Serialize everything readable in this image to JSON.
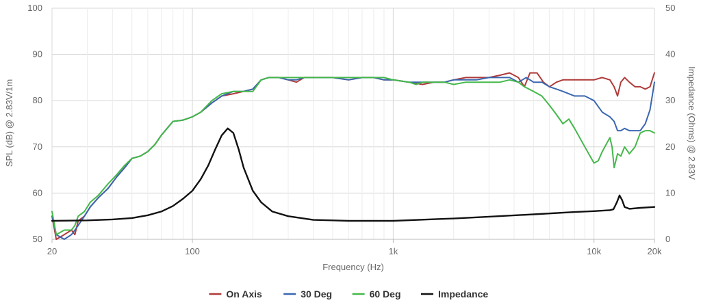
{
  "chart_data": {
    "type": "line",
    "title": "",
    "xlabel": "Frequency (Hz)",
    "ylabel": "SPL (dB) @ 2.83V/1m",
    "y2label": "Impedance (Ohms) @ 2.83V",
    "x_scale": "log",
    "xlim": [
      20,
      20000
    ],
    "ylim": [
      50,
      100
    ],
    "y2lim": [
      0,
      50
    ],
    "grid": true,
    "legend_position": "bottom-center",
    "x_ticks": [
      {
        "value": 20,
        "label": "20"
      },
      {
        "value": 100,
        "label": "100"
      },
      {
        "value": 1000,
        "label": "1k"
      },
      {
        "value": 10000,
        "label": "10k"
      },
      {
        "value": 20000,
        "label": "20k"
      }
    ],
    "y_ticks": [
      50,
      60,
      70,
      80,
      90,
      100
    ],
    "y2_ticks": [
      0,
      10,
      20,
      30,
      40,
      50
    ],
    "series": [
      {
        "name": "On Axis",
        "axis": "left",
        "color": "#b03a3a",
        "points": [
          [
            20,
            55
          ],
          [
            21,
            50
          ],
          [
            23,
            51
          ],
          [
            25,
            52
          ],
          [
            26,
            51
          ],
          [
            27,
            54
          ],
          [
            29,
            55
          ],
          [
            31,
            57
          ],
          [
            34,
            59
          ],
          [
            38,
            61
          ],
          [
            42,
            63.5
          ],
          [
            46,
            65.5
          ],
          [
            50,
            67.5
          ],
          [
            55,
            68
          ],
          [
            60,
            69
          ],
          [
            65,
            70.5
          ],
          [
            70,
            72.5
          ],
          [
            80,
            75.5
          ],
          [
            90,
            75.8
          ],
          [
            100,
            76.5
          ],
          [
            110,
            77.5
          ],
          [
            125,
            79.5
          ],
          [
            140,
            81
          ],
          [
            160,
            81.5
          ],
          [
            180,
            82
          ],
          [
            200,
            82.5
          ],
          [
            220,
            84.5
          ],
          [
            240,
            85
          ],
          [
            270,
            85
          ],
          [
            300,
            84.5
          ],
          [
            330,
            84
          ],
          [
            360,
            85
          ],
          [
            400,
            85
          ],
          [
            450,
            85
          ],
          [
            500,
            85
          ],
          [
            600,
            84.5
          ],
          [
            700,
            85
          ],
          [
            800,
            85
          ],
          [
            900,
            84.5
          ],
          [
            1000,
            84.5
          ],
          [
            1200,
            84
          ],
          [
            1400,
            83.5
          ],
          [
            1600,
            84
          ],
          [
            1800,
            84
          ],
          [
            2000,
            84.5
          ],
          [
            2300,
            85
          ],
          [
            2600,
            85
          ],
          [
            3000,
            85
          ],
          [
            3400,
            85.5
          ],
          [
            3800,
            86
          ],
          [
            4200,
            85
          ],
          [
            4500,
            83
          ],
          [
            4800,
            86
          ],
          [
            5200,
            86
          ],
          [
            5600,
            84
          ],
          [
            6000,
            83
          ],
          [
            6500,
            84
          ],
          [
            7000,
            84.5
          ],
          [
            8000,
            84.5
          ],
          [
            9000,
            84.5
          ],
          [
            10000,
            84.5
          ],
          [
            11000,
            85
          ],
          [
            12000,
            84.5
          ],
          [
            12600,
            83
          ],
          [
            13100,
            81
          ],
          [
            13600,
            84
          ],
          [
            14200,
            85
          ],
          [
            15000,
            84
          ],
          [
            16000,
            83
          ],
          [
            17000,
            83
          ],
          [
            18000,
            82.5
          ],
          [
            19000,
            83
          ],
          [
            20000,
            86
          ]
        ]
      },
      {
        "name": "30 Deg",
        "axis": "left",
        "color": "#3a67b0",
        "points": [
          [
            20,
            55
          ],
          [
            21,
            51
          ],
          [
            23,
            50
          ],
          [
            25,
            51
          ],
          [
            26,
            52
          ],
          [
            27,
            53
          ],
          [
            29,
            55
          ],
          [
            31,
            57
          ],
          [
            34,
            59
          ],
          [
            38,
            61
          ],
          [
            42,
            63.5
          ],
          [
            46,
            65.5
          ],
          [
            50,
            67.5
          ],
          [
            55,
            68
          ],
          [
            60,
            69
          ],
          [
            65,
            70.5
          ],
          [
            70,
            72.5
          ],
          [
            80,
            75.5
          ],
          [
            90,
            75.8
          ],
          [
            100,
            76.5
          ],
          [
            110,
            77.5
          ],
          [
            125,
            79.5
          ],
          [
            140,
            81
          ],
          [
            160,
            82
          ],
          [
            180,
            82
          ],
          [
            200,
            82.5
          ],
          [
            220,
            84.5
          ],
          [
            240,
            85
          ],
          [
            270,
            85
          ],
          [
            300,
            84.5
          ],
          [
            330,
            84.5
          ],
          [
            360,
            85
          ],
          [
            400,
            85
          ],
          [
            450,
            85
          ],
          [
            500,
            85
          ],
          [
            600,
            84.5
          ],
          [
            700,
            85
          ],
          [
            800,
            85
          ],
          [
            900,
            84.5
          ],
          [
            1000,
            84.5
          ],
          [
            1200,
            84
          ],
          [
            1400,
            84
          ],
          [
            1600,
            84
          ],
          [
            1800,
            84
          ],
          [
            2000,
            84.5
          ],
          [
            2300,
            84.5
          ],
          [
            2600,
            84.5
          ],
          [
            3000,
            85
          ],
          [
            3400,
            85
          ],
          [
            3800,
            85
          ],
          [
            4200,
            84
          ],
          [
            4600,
            85
          ],
          [
            5000,
            84
          ],
          [
            5500,
            84
          ],
          [
            6000,
            83
          ],
          [
            6500,
            82.5
          ],
          [
            7000,
            82
          ],
          [
            8000,
            81
          ],
          [
            9000,
            81
          ],
          [
            10000,
            80
          ],
          [
            11000,
            77.5
          ],
          [
            12000,
            76.5
          ],
          [
            12600,
            75.5
          ],
          [
            13100,
            73.5
          ],
          [
            13600,
            73.5
          ],
          [
            14200,
            74
          ],
          [
            15000,
            73.5
          ],
          [
            16000,
            73.5
          ],
          [
            17000,
            73.5
          ],
          [
            18000,
            75
          ],
          [
            19000,
            78
          ],
          [
            20000,
            84
          ]
        ]
      },
      {
        "name": "60 Deg",
        "axis": "left",
        "color": "#44b84a",
        "points": [
          [
            20,
            56
          ],
          [
            21,
            51
          ],
          [
            23,
            52
          ],
          [
            25,
            52
          ],
          [
            26,
            53
          ],
          [
            27,
            55
          ],
          [
            29,
            56
          ],
          [
            31,
            58
          ],
          [
            34,
            59.5
          ],
          [
            38,
            62
          ],
          [
            42,
            64
          ],
          [
            46,
            66
          ],
          [
            50,
            67.5
          ],
          [
            55,
            68
          ],
          [
            60,
            69
          ],
          [
            65,
            70.5
          ],
          [
            70,
            72.5
          ],
          [
            80,
            75.5
          ],
          [
            90,
            75.8
          ],
          [
            100,
            76.5
          ],
          [
            110,
            77.5
          ],
          [
            125,
            80
          ],
          [
            140,
            81.5
          ],
          [
            160,
            82
          ],
          [
            180,
            82
          ],
          [
            200,
            82
          ],
          [
            220,
            84.5
          ],
          [
            240,
            85
          ],
          [
            270,
            85
          ],
          [
            300,
            85
          ],
          [
            330,
            85
          ],
          [
            360,
            85
          ],
          [
            400,
            85
          ],
          [
            450,
            85
          ],
          [
            500,
            85
          ],
          [
            600,
            85
          ],
          [
            700,
            85
          ],
          [
            800,
            85
          ],
          [
            900,
            85
          ],
          [
            1000,
            84.5
          ],
          [
            1200,
            84
          ],
          [
            1300,
            83.5
          ],
          [
            1400,
            84
          ],
          [
            1600,
            84
          ],
          [
            1800,
            84
          ],
          [
            2000,
            83.5
          ],
          [
            2300,
            84
          ],
          [
            2600,
            84
          ],
          [
            3000,
            84
          ],
          [
            3400,
            84
          ],
          [
            3800,
            84.5
          ],
          [
            4200,
            84
          ],
          [
            4500,
            83
          ],
          [
            5000,
            82
          ],
          [
            5500,
            81
          ],
          [
            6000,
            79
          ],
          [
            6500,
            77
          ],
          [
            7000,
            75
          ],
          [
            7500,
            76
          ],
          [
            8000,
            74
          ],
          [
            9000,
            70
          ],
          [
            10000,
            66.5
          ],
          [
            10500,
            67
          ],
          [
            11000,
            69
          ],
          [
            12000,
            72
          ],
          [
            12300,
            70
          ],
          [
            12600,
            65.5
          ],
          [
            13100,
            68.5
          ],
          [
            13600,
            68
          ],
          [
            14200,
            70
          ],
          [
            15000,
            68.5
          ],
          [
            16000,
            70
          ],
          [
            17000,
            73
          ],
          [
            18000,
            73.5
          ],
          [
            19000,
            73.5
          ],
          [
            20000,
            73
          ]
        ]
      },
      {
        "name": "Impedance",
        "axis": "right",
        "color": "#111111",
        "points": [
          [
            20,
            4
          ],
          [
            30,
            4.1
          ],
          [
            40,
            4.3
          ],
          [
            50,
            4.6
          ],
          [
            60,
            5.2
          ],
          [
            70,
            6
          ],
          [
            80,
            7.2
          ],
          [
            90,
            8.8
          ],
          [
            100,
            10.5
          ],
          [
            110,
            13
          ],
          [
            120,
            16
          ],
          [
            130,
            19.5
          ],
          [
            140,
            22.5
          ],
          [
            150,
            24
          ],
          [
            160,
            23
          ],
          [
            170,
            19.5
          ],
          [
            180,
            15.5
          ],
          [
            200,
            10.5
          ],
          [
            220,
            8
          ],
          [
            250,
            6
          ],
          [
            300,
            5
          ],
          [
            400,
            4.2
          ],
          [
            500,
            4.1
          ],
          [
            600,
            4
          ],
          [
            700,
            4
          ],
          [
            800,
            4
          ],
          [
            1000,
            4
          ],
          [
            1500,
            4.3
          ],
          [
            2000,
            4.5
          ],
          [
            3000,
            4.9
          ],
          [
            5000,
            5.4
          ],
          [
            8000,
            5.9
          ],
          [
            10000,
            6.1
          ],
          [
            12000,
            6.3
          ],
          [
            12500,
            6.5
          ],
          [
            13000,
            8
          ],
          [
            13400,
            9.5
          ],
          [
            13800,
            8.5
          ],
          [
            14200,
            7
          ],
          [
            15000,
            6.6
          ],
          [
            17000,
            6.8
          ],
          [
            20000,
            7
          ]
        ]
      }
    ]
  }
}
